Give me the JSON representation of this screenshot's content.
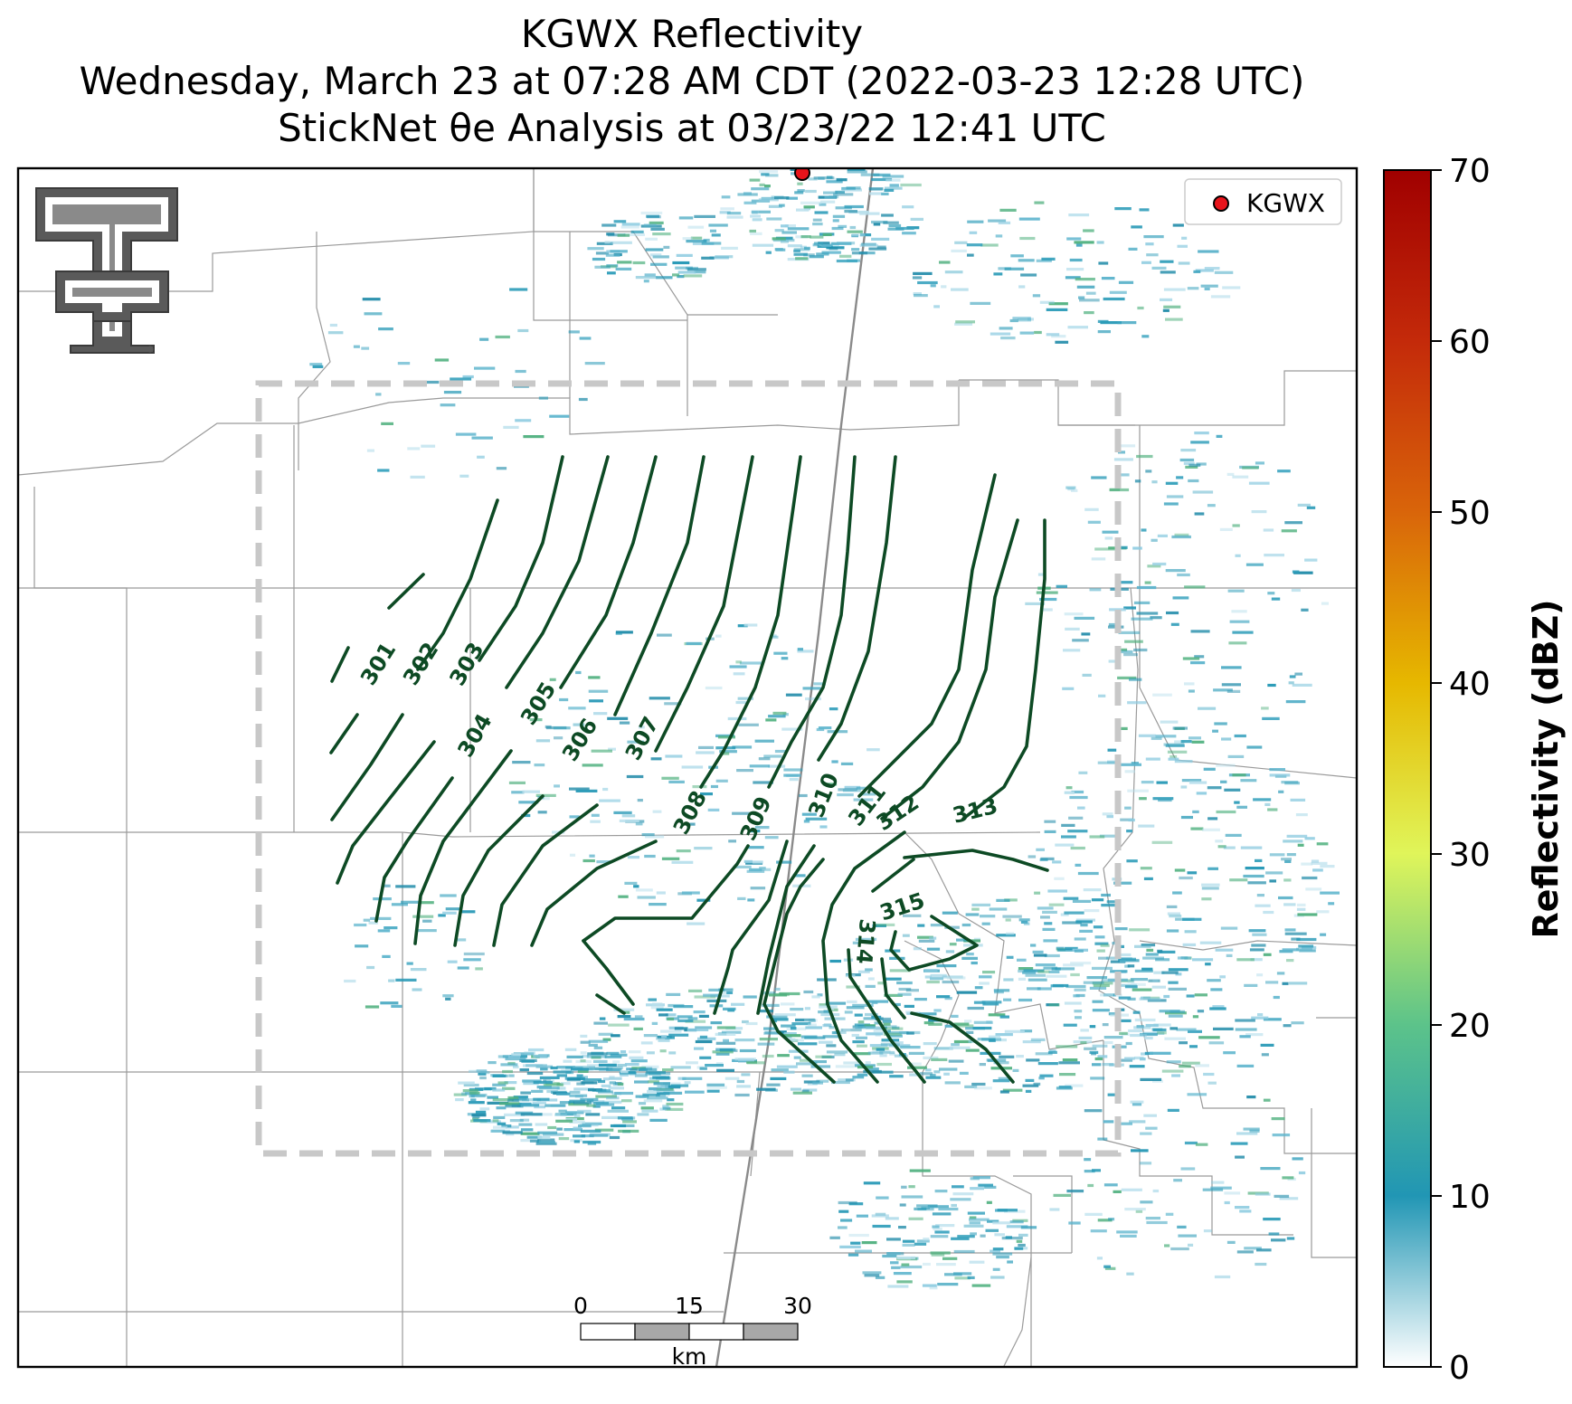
{
  "title": {
    "line1": "KGWX Reflectivity",
    "line2": "Wednesday, March 23 at 07:28 AM CDT (2022-03-23 12:28 UTC)",
    "line3": "StickNet θe Analysis at 03/23/22 12:41 UTC"
  },
  "legend": {
    "label": "KGWX",
    "marker_color": "#e8141b"
  },
  "colorbar": {
    "label": "Reflectivity (dBZ)",
    "min": 0,
    "max": 70,
    "ticks": [
      "0",
      "10",
      "20",
      "30",
      "40",
      "50",
      "60",
      "70"
    ],
    "stops": [
      "#ffffff",
      "#2196b4",
      "#5cc38a",
      "#e0f55a",
      "#e6b800",
      "#d9650a",
      "#c42a0a",
      "#a00000"
    ]
  },
  "scale_bar": {
    "ticks": [
      "0",
      "15",
      "30"
    ],
    "unit": "km"
  },
  "contours": {
    "color": "#0d4a24",
    "labels": [
      "301",
      "302",
      "303",
      "304",
      "305",
      "306",
      "307",
      "308",
      "309",
      "310",
      "311",
      "312",
      "313",
      "314",
      "315"
    ]
  },
  "colors": {
    "analysis_box": "#c8c8c8",
    "boundaries": "#9a9a9a",
    "highway": "#8a8a8a",
    "logo": "#5a5a5a"
  }
}
